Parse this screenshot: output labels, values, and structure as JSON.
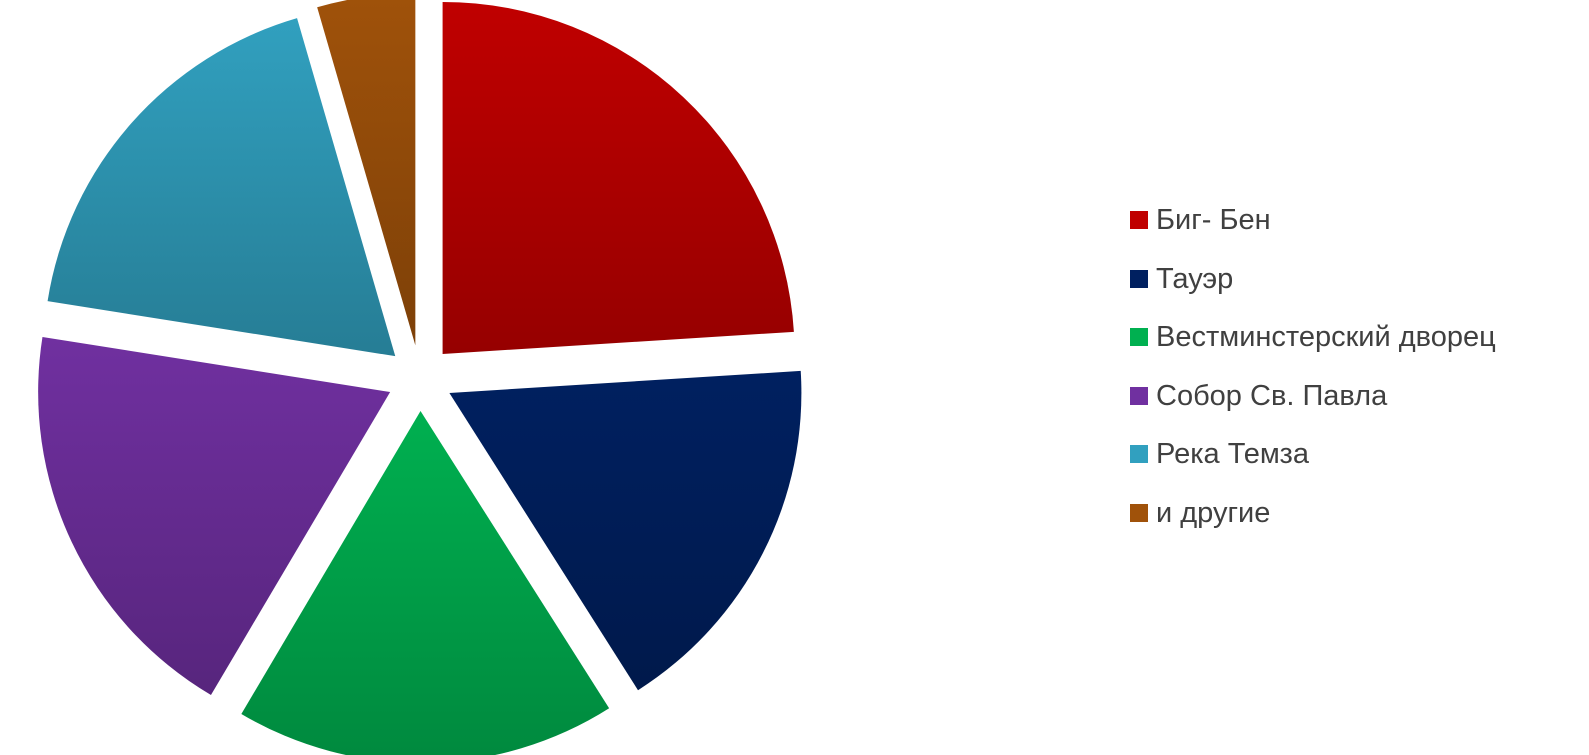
{
  "chart_data": {
    "type": "pie",
    "exploded": true,
    "legend_position": "right",
    "categories": [
      "Биг- Бен",
      "Тауэр",
      "Вестминстерский дворец",
      "Собор Св. Павла",
      "Река Темза",
      "и другие"
    ],
    "values": [
      24,
      17,
      17.5,
      19,
      18,
      4.5
    ],
    "colors": [
      "#C00000",
      "#002060",
      "#00B050",
      "#7030A0",
      "#31A0BF",
      "#A0520A"
    ]
  }
}
